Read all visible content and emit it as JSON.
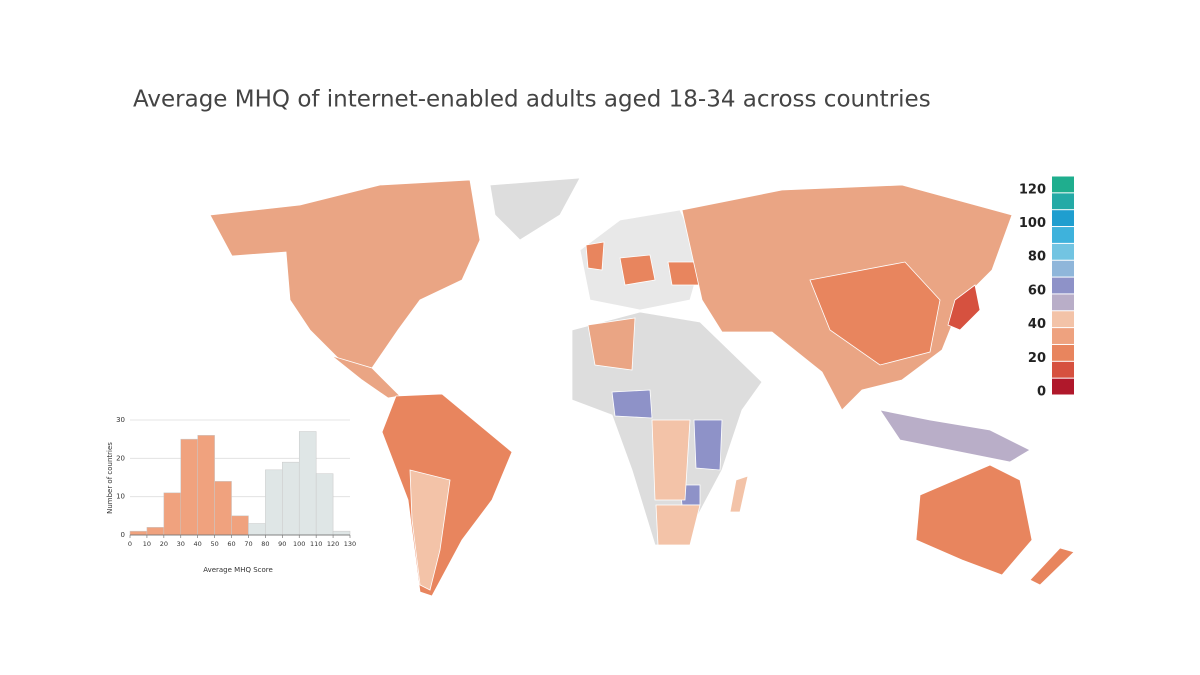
{
  "title": "Average MHQ of internet-enabled adults aged 18-34 across countries",
  "map": {
    "legend": {
      "lim": [
        0,
        130
      ],
      "ticks": [
        0,
        20,
        40,
        60,
        80,
        100,
        120
      ],
      "colors": [
        "#b0182b",
        "#d6513f",
        "#e8855e",
        "#eea27f",
        "#f3c3a8",
        "#b9aec8",
        "#8e92c8",
        "#8fb6da",
        "#72c4e2",
        "#3eb2dc",
        "#1f9ecf",
        "#24aaa6",
        "#1fae8e"
      ]
    }
  },
  "chart_data": {
    "type": "histogram",
    "bins": [
      0,
      10,
      20,
      30,
      40,
      50,
      60,
      70,
      80,
      90,
      100,
      110,
      120,
      130
    ],
    "values": [
      1,
      2,
      11,
      25,
      26,
      14,
      5,
      3,
      17,
      19,
      27,
      16,
      1
    ],
    "colors": [
      "#f0a27e",
      "#f0a27e",
      "#f0a27e",
      "#f0a27e",
      "#f0a27e",
      "#f0a27e",
      "#f0a27e",
      "#dfe6e6",
      "#dfe6e6",
      "#dfe6e6",
      "#dfe6e6",
      "#dfe6e6",
      "#dfe6e6"
    ],
    "xlim": [
      0,
      130
    ],
    "xticks": [
      0,
      10,
      20,
      30,
      40,
      50,
      60,
      70,
      80,
      90,
      100,
      110,
      120,
      130
    ],
    "ylim": [
      0,
      30
    ],
    "yticks": [
      0,
      10,
      20,
      30
    ],
    "grid": true,
    "xlabel": "Average MHQ Score",
    "ylabel": "Number of countries"
  }
}
